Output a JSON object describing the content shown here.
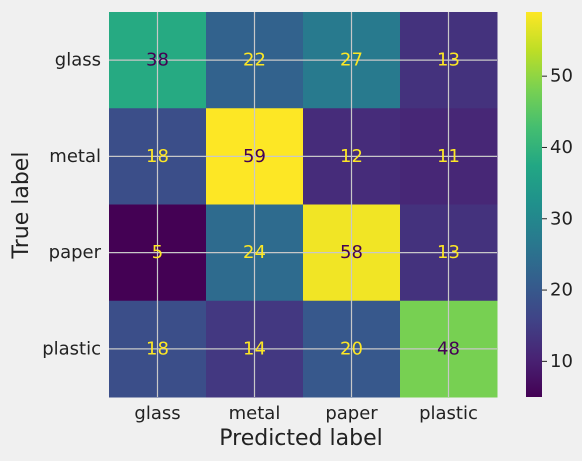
{
  "chart_data": {
    "type": "heatmap",
    "title": "",
    "xlabel": "Predicted label",
    "ylabel": "True label",
    "x_categories": [
      "glass",
      "metal",
      "paper",
      "plastic"
    ],
    "y_categories": [
      "glass",
      "metal",
      "paper",
      "plastic"
    ],
    "values": [
      [
        38,
        22,
        27,
        13
      ],
      [
        18,
        59,
        12,
        11
      ],
      [
        5,
        24,
        58,
        13
      ],
      [
        18,
        14,
        20,
        48
      ]
    ],
    "colormap": "viridis",
    "color_range": [
      5,
      59
    ],
    "colorbar_ticks": [
      10,
      20,
      30,
      40,
      50
    ],
    "grid": true,
    "text_color_dark_cell": "#fde725",
    "text_color_light_cell": "#440154",
    "background": "#f0f0f0",
    "grid_color": "#c8c8c8"
  }
}
